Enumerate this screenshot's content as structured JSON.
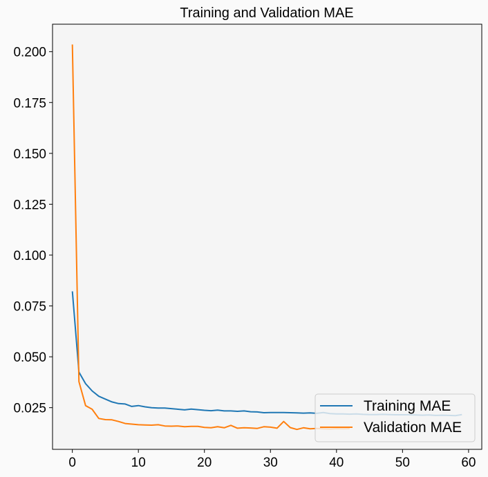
{
  "chart_data": {
    "type": "line",
    "title": "Training and Validation MAE",
    "xlabel": "",
    "ylabel": "",
    "xlim": [
      -3,
      62
    ],
    "ylim": [
      0.0045,
      0.2135
    ],
    "x_ticks": [
      0,
      10,
      20,
      30,
      40,
      50,
      60
    ],
    "y_ticks": [
      0.025,
      0.05,
      0.075,
      0.1,
      0.125,
      0.15,
      0.175,
      0.2
    ],
    "x_tick_labels": [
      "0",
      "10",
      "20",
      "30",
      "40",
      "50",
      "60"
    ],
    "y_tick_labels": [
      "0.025",
      "0.050",
      "0.075",
      "0.100",
      "0.125",
      "0.150",
      "0.175",
      "0.200"
    ],
    "grid": false,
    "legend_position": "lower-right",
    "colors": {
      "training": "#1f77b4",
      "validation": "#ff7f0e",
      "plot_bg": "#f5f5f5",
      "page_bg": "#fafafa"
    },
    "series": [
      {
        "name": "Training MAE",
        "x": [
          0,
          1,
          2,
          3,
          4,
          5,
          6,
          7,
          8,
          9,
          10,
          11,
          12,
          13,
          14,
          15,
          16,
          17,
          18,
          19,
          20,
          21,
          22,
          23,
          24,
          25,
          26,
          27,
          28,
          29,
          30,
          31,
          32,
          33,
          34,
          35,
          36,
          37,
          38,
          39,
          40,
          41,
          42,
          43,
          44,
          45,
          46,
          47,
          48,
          49,
          50,
          51,
          52,
          53,
          54,
          55,
          56,
          57,
          58,
          59
        ],
        "values": [
          0.0822,
          0.0425,
          0.0368,
          0.0332,
          0.0306,
          0.0292,
          0.0278,
          0.027,
          0.0268,
          0.0256,
          0.026,
          0.0254,
          0.025,
          0.0248,
          0.0248,
          0.0245,
          0.0242,
          0.0239,
          0.0243,
          0.024,
          0.0237,
          0.0235,
          0.0238,
          0.0234,
          0.0234,
          0.0232,
          0.0234,
          0.023,
          0.0229,
          0.0225,
          0.0226,
          0.0226,
          0.0226,
          0.0225,
          0.0224,
          0.0223,
          0.0224,
          0.0222,
          0.0226,
          0.0221,
          0.0219,
          0.0219,
          0.0218,
          0.0219,
          0.0217,
          0.0216,
          0.0216,
          0.0217,
          0.0216,
          0.0215,
          0.0215,
          0.0215,
          0.0214,
          0.0213,
          0.0214,
          0.0212,
          0.0213,
          0.0212,
          0.0211,
          0.0216
        ]
      },
      {
        "name": "Validation MAE",
        "x": [
          0,
          1,
          2,
          3,
          4,
          5,
          6,
          7,
          8,
          9,
          10,
          11,
          12,
          13,
          14,
          15,
          16,
          17,
          18,
          19,
          20,
          21,
          22,
          23,
          24,
          25,
          26,
          27,
          28,
          29,
          30,
          31,
          32,
          33,
          34,
          35,
          36,
          37,
          38,
          39,
          40,
          41,
          42
        ],
        "values": [
          0.2035,
          0.0378,
          0.026,
          0.0242,
          0.0197,
          0.0191,
          0.019,
          0.0182,
          0.0172,
          0.0169,
          0.0166,
          0.0165,
          0.0164,
          0.0166,
          0.016,
          0.0159,
          0.016,
          0.0156,
          0.0158,
          0.0158,
          0.0153,
          0.0151,
          0.0156,
          0.0151,
          0.0163,
          0.0149,
          0.0151,
          0.015,
          0.0148,
          0.0156,
          0.0154,
          0.0149,
          0.0182,
          0.0152,
          0.0143,
          0.0151,
          0.0146,
          0.0148,
          0.0146,
          0.0145,
          0.0147,
          0.0146,
          0.0147
        ]
      }
    ]
  }
}
